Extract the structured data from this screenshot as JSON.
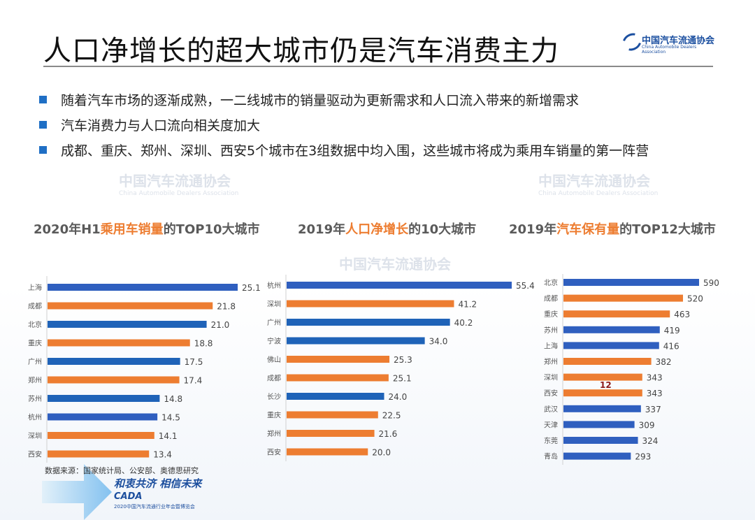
{
  "title": "人口净增长的超大城市仍是汽车消费主力",
  "logo": {
    "cn": "中国汽车流通协会",
    "en": "China Automobile Dealers Association"
  },
  "bullets": [
    "随着汽车市场的逐渐成熟，一二线城市的销量驱动为更新需求和人口流入带来的新增需求",
    "汽车消费力与人口流向相关度加大",
    "成都、重庆、郑州、深圳、西安5个城市在3组数据中均入围，这些城市将成为乘用车销量的第一阵营"
  ],
  "watermark": {
    "cn": "中国汽车流通协会",
    "en": "China Automobile Dealers Association"
  },
  "colors": {
    "blue": "#2f5fbf",
    "orange": "#ed7d31",
    "dark_blue": "#1f63b8"
  },
  "chart_data": [
    {
      "type": "bar",
      "orientation": "horizontal",
      "title_parts": [
        "2020年H1",
        "乘用车销量",
        "的TOP10大城市"
      ],
      "categories": [
        "上海",
        "成都",
        "北京",
        "重庆",
        "广州",
        "郑州",
        "苏州",
        "杭州",
        "深圳",
        "西安"
      ],
      "values": [
        25.1,
        21.8,
        21.0,
        18.8,
        17.5,
        17.4,
        14.8,
        14.5,
        14.1,
        13.4
      ],
      "labels": [
        "25.1",
        "21.8",
        "21.0",
        "18.8",
        "17.5",
        "17.4",
        "14.8",
        "14.5",
        "14.1",
        "13.4"
      ],
      "bar_colors": [
        "blue",
        "orange",
        "dark_blue",
        "orange",
        "dark_blue",
        "orange",
        "dark_blue",
        "blue",
        "orange",
        "orange"
      ],
      "xlim": [
        0,
        25.1
      ]
    },
    {
      "type": "bar",
      "orientation": "horizontal",
      "title_parts": [
        "2019年",
        "人口净增长",
        "的10大城市"
      ],
      "categories": [
        "杭州",
        "深圳",
        "广州",
        "宁波",
        "佛山",
        "成都",
        "长沙",
        "重庆",
        "郑州",
        "西安"
      ],
      "values": [
        55.4,
        41.2,
        40.2,
        34.0,
        25.3,
        25.1,
        24.0,
        22.5,
        21.6,
        20.0
      ],
      "labels": [
        "55.4",
        "41.2",
        "40.2",
        "34.0",
        "25.3",
        "25.1",
        "24.0",
        "22.5",
        "21.6",
        "20.0"
      ],
      "bar_colors": [
        "blue",
        "orange",
        "dark_blue",
        "dark_blue",
        "orange",
        "orange",
        "dark_blue",
        "orange",
        "orange",
        "orange"
      ],
      "xlim": [
        0,
        55.4
      ]
    },
    {
      "type": "bar",
      "orientation": "horizontal",
      "title_parts": [
        "2019年",
        "汽车保有量",
        "的TOP12大城市"
      ],
      "categories": [
        "北京",
        "成都",
        "重庆",
        "苏州",
        "上海",
        "郑州",
        "深圳",
        "西安",
        "武汉",
        "天津",
        "东莞",
        "青岛"
      ],
      "values": [
        590,
        520,
        463,
        419,
        416,
        382,
        343,
        343,
        337,
        309,
        324,
        293
      ],
      "labels": [
        "590",
        "520",
        "463",
        "419",
        "416",
        "382",
        "343",
        "343",
        "337",
        "309",
        "324",
        "293"
      ],
      "bar_colors": [
        "blue",
        "orange",
        "orange",
        "blue",
        "blue",
        "orange",
        "orange",
        "orange",
        "blue",
        "blue",
        "blue",
        "blue"
      ],
      "annotation": "12",
      "xlim": [
        0,
        590
      ]
    }
  ],
  "source": "数据来源：国家统计局、公安部、奥德思研究",
  "footer": {
    "slogan": "和衷共济 相信未来",
    "brand": "CADA",
    "expo": "2020中国汽车流通行业年会暨博览会"
  }
}
